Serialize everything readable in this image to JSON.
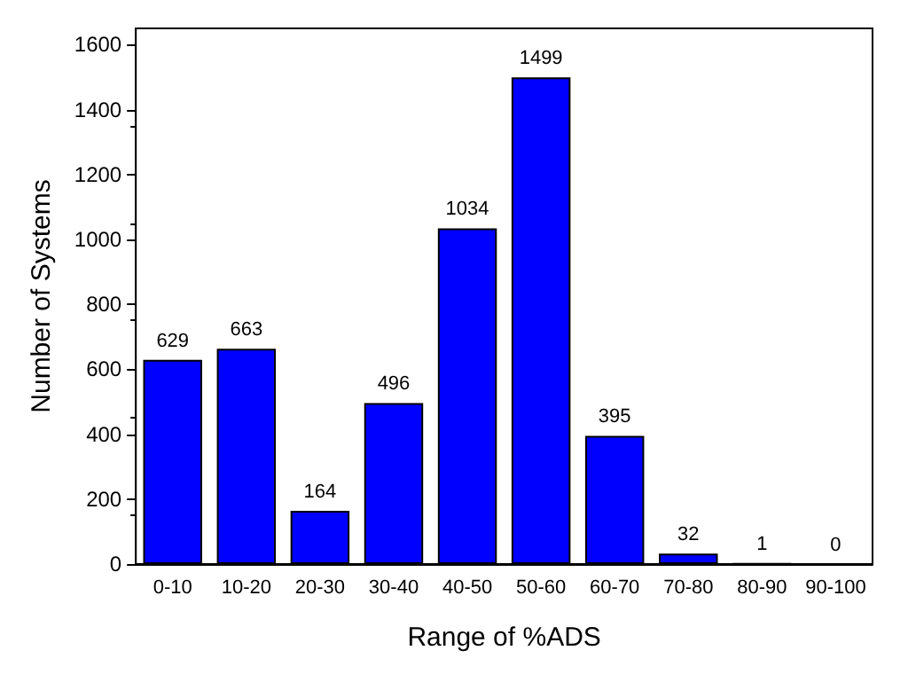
{
  "chart_data": {
    "type": "bar",
    "xlabel": "Range of %ADS",
    "ylabel": "Number of Systems",
    "categories": [
      "0-10",
      "10-20",
      "20-30",
      "30-40",
      "40-50",
      "50-60",
      "60-70",
      "70-80",
      "80-90",
      "90-100"
    ],
    "values": [
      629,
      663,
      164,
      496,
      1034,
      1499,
      395,
      32,
      1,
      0
    ],
    "color": "#0000ff",
    "ylim": [
      0,
      1650
    ],
    "yticks": [
      0,
      200,
      400,
      600,
      800,
      1000,
      1200,
      1400,
      1600
    ],
    "grid": false,
    "data_labels": true
  }
}
